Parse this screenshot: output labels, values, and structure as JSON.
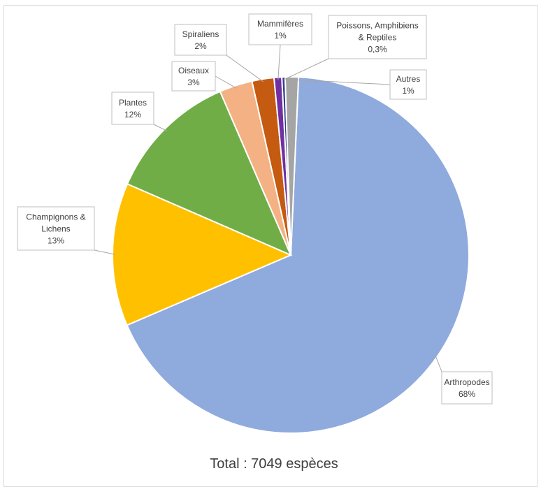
{
  "chart_data": {
    "type": "pie",
    "title": "",
    "footer": "Total : 7049 espèces",
    "slices": [
      {
        "name": "Arthropodes",
        "label": [
          "Arthropodes",
          "68%"
        ],
        "value": 68,
        "color": "#8FAADC"
      },
      {
        "name": "Champignons & Lichens",
        "label": [
          "Champignons &",
          "Lichens",
          "13%"
        ],
        "value": 13,
        "color": "#FFC000"
      },
      {
        "name": "Plantes",
        "label": [
          "Plantes",
          "12%"
        ],
        "value": 12,
        "color": "#70AD47"
      },
      {
        "name": "Oiseaux",
        "label": [
          "Oiseaux",
          "3%"
        ],
        "value": 3,
        "color": "#F4B183"
      },
      {
        "name": "Spiraliens",
        "label": [
          "Spiraliens",
          "2%"
        ],
        "value": 2,
        "color": "#C55A11"
      },
      {
        "name": "Mammifères",
        "label": [
          "Mammifères",
          "1%"
        ],
        "value": 0.7,
        "color": "#7030A0"
      },
      {
        "name": "Poissons, Amphibiens & Reptiles",
        "label": [
          "Poissons, Amphibiens",
          "& Reptiles",
          "0,3%"
        ],
        "value": 0.3,
        "color": "#2F3F8F"
      },
      {
        "name": "Autres",
        "label": [
          "Autres",
          "1%"
        ],
        "value": 1.2,
        "color": "#A5A5A5"
      }
    ]
  }
}
